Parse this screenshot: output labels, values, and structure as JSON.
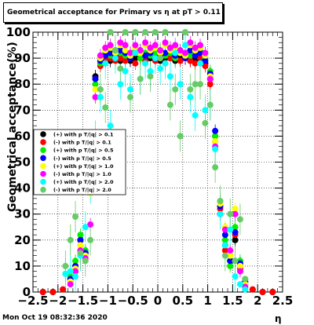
{
  "chart_data": {
    "type": "scatter",
    "title": "Geometrical acceptance for Primary vs  η at pT > 0.11",
    "xlabel": "η",
    "ylabel": "Geometrical acceptance(%)",
    "xlim": [
      -2.5,
      2.5
    ],
    "ylim": [
      0,
      100
    ],
    "x_ticks": [
      "−2.5",
      "−2",
      "−1.5",
      "−1",
      "−0.5",
      "0",
      "0.5",
      "1",
      "1.5",
      "2",
      "2.5"
    ],
    "y_ticks": [
      "0",
      "10",
      "20",
      "30",
      "40",
      "50",
      "60",
      "70",
      "80",
      "90",
      "100"
    ],
    "grid": true,
    "legend_position": "left-middle",
    "series": [
      {
        "name": "(+) with p T/|q| > 0.1",
        "color": "#000000",
        "x": [
          -2.3,
          -2.1,
          -1.9,
          -1.75,
          -1.65,
          -1.55,
          -1.45,
          -1.35,
          -1.25,
          -1.15,
          -1.05,
          -0.95,
          -0.85,
          -0.75,
          -0.65,
          -0.55,
          -0.45,
          -0.35,
          -0.25,
          -0.15,
          -0.05,
          0.05,
          0.15,
          0.25,
          0.35,
          0.45,
          0.55,
          0.65,
          0.75,
          0.85,
          0.95,
          1.05,
          1.15,
          1.25,
          1.35,
          1.45,
          1.55,
          1.65,
          1.75,
          1.9,
          2.1,
          2.3
        ],
        "y": [
          0,
          0,
          1,
          4,
          10,
          20,
          15,
          50,
          83,
          88,
          89,
          89,
          90,
          89,
          90,
          89,
          90,
          90,
          89,
          90,
          90,
          89,
          90,
          90,
          89,
          90,
          90,
          89,
          90,
          89,
          88,
          82,
          60,
          30,
          18,
          12,
          20,
          10,
          3,
          1,
          0,
          0
        ]
      },
      {
        "name": "(-) with p T/|q| > 0.1",
        "color": "#ff0000",
        "x": [
          -2.3,
          -2.1,
          -1.9,
          -1.75,
          -1.65,
          -1.55,
          -1.45,
          -1.35,
          -1.25,
          -1.15,
          -1.05,
          -0.95,
          -0.85,
          -0.75,
          -0.65,
          -0.55,
          -0.45,
          -0.35,
          -0.25,
          -0.15,
          -0.05,
          0.05,
          0.15,
          0.25,
          0.35,
          0.45,
          0.55,
          0.65,
          0.75,
          0.85,
          0.95,
          1.05,
          1.15,
          1.25,
          1.35,
          1.45,
          1.55,
          1.65,
          1.75,
          1.9,
          2.1,
          2.3
        ],
        "y": [
          0,
          0,
          1,
          5,
          8,
          18,
          14,
          52,
          82,
          87,
          89,
          90,
          89,
          90,
          89,
          90,
          88,
          90,
          89,
          91,
          89,
          90,
          88,
          90,
          91,
          89,
          90,
          89,
          88,
          90,
          87,
          80,
          58,
          32,
          16,
          14,
          22,
          9,
          4,
          1,
          0,
          0
        ]
      },
      {
        "name": "(+) with p T/|q| > 0.5",
        "color": "#00ee00",
        "x": [
          -1.75,
          -1.65,
          -1.55,
          -1.45,
          -1.35,
          -1.25,
          -1.15,
          -1.05,
          -0.95,
          -0.85,
          -0.75,
          -0.65,
          -0.55,
          -0.45,
          -0.35,
          -0.25,
          -0.15,
          -0.05,
          0.05,
          0.15,
          0.25,
          0.35,
          0.45,
          0.55,
          0.65,
          0.75,
          0.85,
          0.95,
          1.05,
          1.15,
          1.25,
          1.35,
          1.45,
          1.55,
          1.65,
          1.75
        ],
        "y": [
          6,
          12,
          22,
          16,
          40,
          80,
          88,
          92,
          91,
          93,
          92,
          91,
          92,
          93,
          90,
          92,
          91,
          92,
          93,
          91,
          92,
          90,
          93,
          92,
          91,
          92,
          93,
          90,
          85,
          60,
          35,
          20,
          10,
          25,
          12,
          5
        ]
      },
      {
        "name": "(-) with p T/|q| > 0.5",
        "color": "#0000ff",
        "x": [
          -1.75,
          -1.65,
          -1.55,
          -1.45,
          -1.35,
          -1.25,
          -1.15,
          -1.05,
          -0.95,
          -0.85,
          -0.75,
          -0.65,
          -0.55,
          -0.45,
          -0.35,
          -0.25,
          -0.15,
          -0.05,
          0.05,
          0.15,
          0.25,
          0.35,
          0.45,
          0.55,
          0.65,
          0.75,
          0.85,
          0.95,
          1.05,
          1.15,
          1.25,
          1.35,
          1.45,
          1.55,
          1.65,
          1.75
        ],
        "y": [
          5,
          10,
          20,
          15,
          45,
          82,
          89,
          91,
          92,
          91,
          93,
          92,
          90,
          92,
          93,
          91,
          92,
          90,
          91,
          92,
          93,
          91,
          92,
          90,
          93,
          91,
          92,
          89,
          84,
          62,
          33,
          22,
          12,
          23,
          11,
          4
        ]
      },
      {
        "name": "(+) with p T/|q| > 1.0",
        "color": "#ffff00",
        "x": [
          -1.75,
          -1.65,
          -1.55,
          -1.45,
          -1.35,
          -1.25,
          -1.15,
          -1.05,
          -0.95,
          -0.85,
          -0.75,
          -0.65,
          -0.55,
          -0.45,
          -0.35,
          -0.25,
          -0.15,
          -0.05,
          0.05,
          0.15,
          0.25,
          0.35,
          0.45,
          0.55,
          0.65,
          0.75,
          0.85,
          0.95,
          1.05,
          1.15,
          1.25,
          1.35,
          1.45,
          1.55,
          1.65,
          1.75
        ],
        "y": [
          4,
          9,
          18,
          14,
          38,
          78,
          90,
          93,
          94,
          92,
          95,
          93,
          91,
          94,
          92,
          95,
          93,
          94,
          92,
          95,
          93,
          94,
          92,
          91,
          95,
          93,
          94,
          91,
          83,
          58,
          34,
          25,
          14,
          32,
          10,
          3
        ]
      },
      {
        "name": "(-) with p T/|q| > 1.0",
        "color": "#ff00ff",
        "x": [
          -1.75,
          -1.65,
          -1.55,
          -1.45,
          -1.35,
          -1.25,
          -1.15,
          -1.05,
          -0.95,
          -0.85,
          -0.75,
          -0.65,
          -0.55,
          -0.45,
          -0.35,
          -0.25,
          -0.15,
          -0.05,
          0.05,
          0.15,
          0.25,
          0.35,
          0.45,
          0.55,
          0.65,
          0.75,
          0.85,
          0.95,
          1.05,
          1.15,
          1.25,
          1.35,
          1.45,
          1.55,
          1.65,
          1.75
        ],
        "y": [
          3,
          8,
          16,
          13,
          26,
          75,
          91,
          94,
          95,
          93,
          96,
          95,
          92,
          95,
          93,
          96,
          94,
          95,
          93,
          96,
          94,
          95,
          93,
          92,
          96,
          94,
          95,
          92,
          82,
          56,
          30,
          24,
          16,
          30,
          8,
          2
        ]
      },
      {
        "name": "(+) with p T/|q| > 2.0",
        "color": "#00ffff",
        "x": [
          -1.85,
          -1.75,
          -1.65,
          -1.55,
          -1.45,
          -1.35,
          -1.25,
          -1.15,
          -1.05,
          -0.95,
          -0.85,
          -0.75,
          -0.65,
          -0.55,
          -0.45,
          -0.35,
          -0.25,
          -0.15,
          -0.05,
          0.05,
          0.15,
          0.25,
          0.35,
          0.45,
          0.55,
          0.65,
          0.75,
          0.85,
          0.95,
          1.05,
          1.15,
          1.25,
          1.35,
          1.45,
          1.55,
          1.65,
          1.75
        ],
        "y": [
          7,
          8,
          6,
          14,
          25,
          40,
          60,
          75,
          88,
          64,
          90,
          80,
          85,
          78,
          92,
          82,
          88,
          85,
          90,
          86,
          88,
          83,
          92,
          80,
          95,
          75,
          68,
          88,
          70,
          72,
          55,
          30,
          18,
          24,
          6,
          3,
          1
        ]
      },
      {
        "name": "(-) with p T/|q| > 2.0",
        "color": "#66cc66",
        "x": [
          -1.85,
          -1.75,
          -1.65,
          -1.55,
          -1.45,
          -1.35,
          -1.25,
          -1.15,
          -1.05,
          -0.95,
          -0.85,
          -0.75,
          -0.65,
          -0.55,
          -0.45,
          -0.35,
          -0.25,
          -0.15,
          -0.05,
          0.05,
          0.15,
          0.25,
          0.35,
          0.45,
          0.55,
          0.65,
          0.75,
          0.85,
          0.95,
          1.05,
          1.15,
          1.25,
          1.35,
          1.45,
          1.55,
          1.65,
          1.75
        ],
        "y": [
          10,
          20,
          29,
          15,
          12,
          20,
          55,
          78,
          71,
          100,
          93,
          86,
          100,
          75,
          100,
          82,
          100,
          83,
          100,
          90,
          100,
          72,
          78,
          60,
          100,
          78,
          80,
          80,
          65,
          72,
          48,
          35,
          14,
          30,
          12,
          28,
          5
        ]
      }
    ]
  },
  "footer": {
    "timestamp": "Mon Oct 19 08:32:36 2020"
  }
}
